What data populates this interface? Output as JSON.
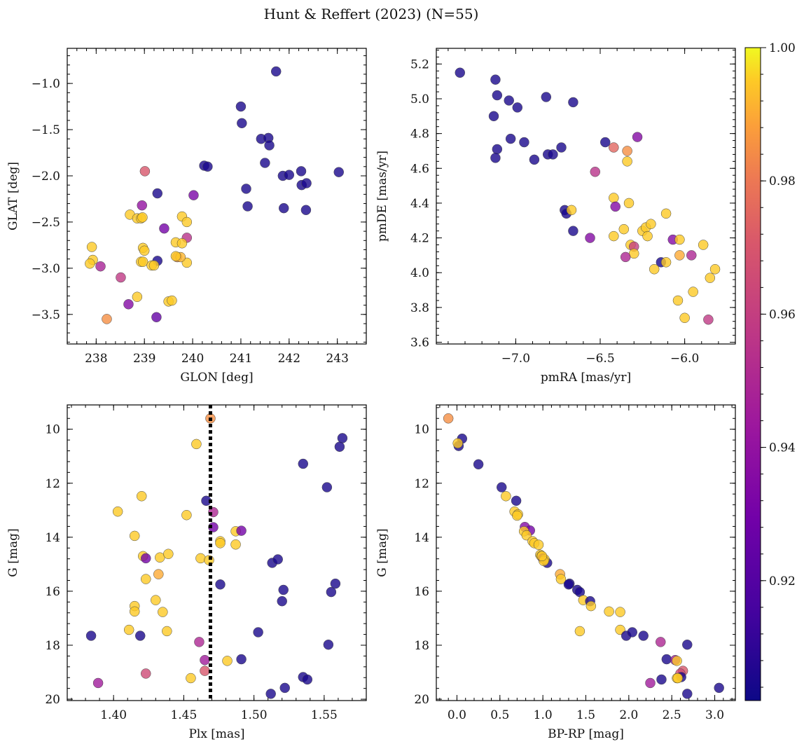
{
  "title": "Hunt & Reffert (2023) (N=55)",
  "colorbar": {
    "min": 0.902,
    "max": 1.0,
    "ticks": [
      0.92,
      0.94,
      0.96,
      0.98,
      1.0
    ],
    "tick_labels": [
      "0.92",
      "0.94",
      "0.96",
      "0.98",
      "1.00"
    ],
    "colormap": "plasma"
  },
  "chart_data": [
    {
      "type": "scatter",
      "xlabel": "GLON [deg]",
      "ylabel": "GLAT [deg]",
      "xlim": [
        237.4,
        243.6
      ],
      "ylim": [
        -3.82,
        -0.62
      ],
      "y_inverted": false,
      "xticks": [
        238,
        239,
        240,
        241,
        242,
        243
      ],
      "xtick_labels": [
        "238",
        "239",
        "240",
        "241",
        "242",
        "243"
      ],
      "yticks": [
        -3.5,
        -3.0,
        -2.5,
        -2.0,
        -1.5,
        -1.0
      ],
      "ytick_labels": [
        "−3.5",
        "−3.0",
        "−2.5",
        "−2.0",
        "−1.5",
        "−1.0"
      ],
      "points": [
        [
          241.73,
          -0.87,
          0.905
        ],
        [
          241.0,
          -1.25,
          0.905
        ],
        [
          241.02,
          -1.43,
          0.905
        ],
        [
          241.42,
          -1.6,
          0.905
        ],
        [
          241.57,
          -1.59,
          0.905
        ],
        [
          241.59,
          -1.67,
          0.905
        ],
        [
          241.5,
          -1.86,
          0.905
        ],
        [
          240.24,
          -1.89,
          0.905
        ],
        [
          240.31,
          -1.9,
          0.905
        ],
        [
          241.11,
          -2.14,
          0.905
        ],
        [
          241.14,
          -2.33,
          0.905
        ],
        [
          241.87,
          -2.0,
          0.905
        ],
        [
          242.0,
          -1.99,
          0.905
        ],
        [
          242.25,
          -1.95,
          0.905
        ],
        [
          242.26,
          -2.1,
          0.905
        ],
        [
          242.36,
          -2.08,
          0.905
        ],
        [
          243.03,
          -1.96,
          0.905
        ],
        [
          241.89,
          -2.35,
          0.905
        ],
        [
          242.35,
          -2.37,
          0.905
        ],
        [
          239.27,
          -2.19,
          0.905
        ],
        [
          239.27,
          -2.92,
          0.905
        ],
        [
          239.01,
          -1.95,
          0.97
        ],
        [
          240.02,
          -2.21,
          0.932
        ],
        [
          238.95,
          -2.32,
          0.94
        ],
        [
          239.41,
          -2.57,
          0.93
        ],
        [
          239.88,
          -2.67,
          0.955
        ],
        [
          238.09,
          -2.98,
          0.948
        ],
        [
          238.51,
          -3.1,
          0.958
        ],
        [
          238.67,
          -3.39,
          0.935
        ],
        [
          239.25,
          -3.53,
          0.925
        ],
        [
          238.7,
          -2.42,
          0.995
        ],
        [
          238.85,
          -2.46,
          0.995
        ],
        [
          238.93,
          -2.46,
          0.995
        ],
        [
          238.96,
          -2.45,
          0.995
        ],
        [
          238.97,
          -2.78,
          0.995
        ],
        [
          239.0,
          -2.81,
          0.995
        ],
        [
          238.93,
          -2.93,
          0.995
        ],
        [
          238.97,
          -2.93,
          0.995
        ],
        [
          239.15,
          -2.97,
          0.995
        ],
        [
          239.2,
          -2.97,
          0.995
        ],
        [
          239.65,
          -2.72,
          0.995
        ],
        [
          239.78,
          -2.44,
          0.995
        ],
        [
          239.78,
          -2.73,
          0.995
        ],
        [
          239.88,
          -2.5,
          0.995
        ],
        [
          239.88,
          -2.94,
          0.995
        ],
        [
          239.68,
          -2.88,
          0.985
        ],
        [
          239.75,
          -2.88,
          0.992
        ],
        [
          237.91,
          -2.77,
          0.995
        ],
        [
          237.93,
          -2.91,
          0.995
        ],
        [
          237.87,
          -2.95,
          0.995
        ],
        [
          238.22,
          -3.55,
          0.985
        ],
        [
          238.85,
          -3.31,
          0.995
        ],
        [
          239.5,
          -3.36,
          0.995
        ],
        [
          239.57,
          -3.35,
          0.995
        ],
        [
          239.65,
          -2.87,
          0.995
        ]
      ]
    },
    {
      "type": "scatter",
      "xlabel": "pmRA [mas/yr]",
      "ylabel": "pmDE [mas/yr]",
      "xlim": [
        -7.47,
        -5.7
      ],
      "ylim": [
        3.59,
        5.29
      ],
      "y_inverted": false,
      "xticks": [
        -7.0,
        -6.5,
        -6.0
      ],
      "xtick_labels": [
        "−7.0",
        "−6.5",
        "−6.0"
      ],
      "yticks": [
        3.6,
        3.8,
        4.0,
        4.2,
        4.4,
        4.6,
        4.8,
        5.0,
        5.2
      ],
      "ytick_labels": [
        "3.6",
        "3.8",
        "4.0",
        "4.2",
        "4.4",
        "4.6",
        "4.8",
        "5.0",
        "5.2"
      ],
      "points": [
        [
          -7.33,
          5.15,
          0.905
        ],
        [
          -7.12,
          5.11,
          0.905
        ],
        [
          -7.11,
          5.02,
          0.905
        ],
        [
          -7.04,
          4.99,
          0.905
        ],
        [
          -6.99,
          4.95,
          0.905
        ],
        [
          -7.13,
          4.9,
          0.905
        ],
        [
          -6.82,
          5.01,
          0.905
        ],
        [
          -6.66,
          4.98,
          0.905
        ],
        [
          -7.03,
          4.77,
          0.905
        ],
        [
          -6.95,
          4.75,
          0.905
        ],
        [
          -6.73,
          4.72,
          0.905
        ],
        [
          -7.11,
          4.71,
          0.905
        ],
        [
          -6.81,
          4.68,
          0.905
        ],
        [
          -6.78,
          4.68,
          0.905
        ],
        [
          -6.89,
          4.65,
          0.905
        ],
        [
          -7.12,
          4.66,
          0.905
        ],
        [
          -6.71,
          4.36,
          0.905
        ],
        [
          -6.7,
          4.34,
          0.905
        ],
        [
          -6.66,
          4.24,
          0.905
        ],
        [
          -6.47,
          4.75,
          0.905
        ],
        [
          -6.14,
          4.06,
          0.905
        ],
        [
          -6.42,
          4.72,
          0.975
        ],
        [
          -6.34,
          4.7,
          0.985
        ],
        [
          -6.28,
          4.78,
          0.935
        ],
        [
          -6.53,
          4.58,
          0.955
        ],
        [
          -6.34,
          4.64,
          0.995
        ],
        [
          -6.42,
          4.43,
          0.995
        ],
        [
          -6.41,
          4.38,
          0.935
        ],
        [
          -6.33,
          4.4,
          0.995
        ],
        [
          -6.11,
          4.34,
          0.995
        ],
        [
          -6.67,
          4.36,
          0.995
        ],
        [
          -6.36,
          4.25,
          0.995
        ],
        [
          -6.42,
          4.21,
          0.995
        ],
        [
          -6.56,
          4.2,
          0.935
        ],
        [
          -6.25,
          4.24,
          0.995
        ],
        [
          -6.23,
          4.26,
          0.995
        ],
        [
          -6.2,
          4.28,
          0.995
        ],
        [
          -6.22,
          4.21,
          0.995
        ],
        [
          -6.32,
          4.16,
          0.995
        ],
        [
          -6.3,
          4.15,
          0.96
        ],
        [
          -6.3,
          4.11,
          0.995
        ],
        [
          -6.35,
          4.09,
          0.95
        ],
        [
          -6.07,
          4.19,
          0.935
        ],
        [
          -6.03,
          4.19,
          0.995
        ],
        [
          -5.89,
          4.16,
          0.995
        ],
        [
          -6.18,
          4.02,
          0.995
        ],
        [
          -6.11,
          4.06,
          0.995
        ],
        [
          -6.03,
          4.1,
          0.99
        ],
        [
          -5.96,
          4.1,
          0.95
        ],
        [
          -5.82,
          4.02,
          0.995
        ],
        [
          -5.85,
          3.97,
          0.995
        ],
        [
          -5.95,
          3.89,
          0.995
        ],
        [
          -6.04,
          3.84,
          0.995
        ],
        [
          -6.0,
          3.74,
          0.995
        ],
        [
          -5.86,
          3.73,
          0.958
        ]
      ]
    },
    {
      "type": "scatter",
      "xlabel": "Plx [mas]",
      "ylabel": "G [mag]",
      "xlim": [
        1.367,
        1.58
      ],
      "ylim": [
        20.05,
        9.1
      ],
      "y_inverted": true,
      "vline": 1.469,
      "xticks": [
        1.4,
        1.45,
        1.5,
        1.55
      ],
      "xtick_labels": [
        "1.40",
        "1.45",
        "1.50",
        "1.55"
      ],
      "yticks": [
        10,
        12,
        14,
        16,
        18,
        20
      ],
      "ytick_labels": [
        "10",
        "12",
        "14",
        "16",
        "18",
        "20"
      ],
      "points": [
        [
          1.563,
          10.33,
          0.905
        ],
        [
          1.561,
          10.65,
          0.905
        ],
        [
          1.535,
          11.28,
          0.905
        ],
        [
          1.552,
          12.15,
          0.905
        ],
        [
          1.466,
          12.65,
          0.905
        ],
        [
          1.513,
          14.95,
          0.905
        ],
        [
          1.517,
          14.82,
          0.905
        ],
        [
          1.558,
          15.72,
          0.905
        ],
        [
          1.476,
          15.75,
          0.905
        ],
        [
          1.521,
          15.95,
          0.905
        ],
        [
          1.555,
          16.03,
          0.905
        ],
        [
          1.52,
          16.37,
          0.905
        ],
        [
          1.503,
          17.52,
          0.905
        ],
        [
          1.384,
          17.65,
          0.905
        ],
        [
          1.419,
          17.65,
          0.905
        ],
        [
          1.553,
          17.98,
          0.905
        ],
        [
          1.491,
          18.52,
          0.905
        ],
        [
          1.535,
          19.18,
          0.905
        ],
        [
          1.538,
          19.27,
          0.905
        ],
        [
          1.522,
          19.58,
          0.905
        ],
        [
          1.512,
          19.8,
          0.905
        ],
        [
          1.469,
          9.6,
          0.985
        ],
        [
          1.459,
          10.55,
          0.995
        ],
        [
          1.403,
          13.05,
          0.995
        ],
        [
          1.42,
          12.48,
          0.995
        ],
        [
          1.452,
          13.18,
          0.995
        ],
        [
          1.471,
          13.07,
          0.95
        ],
        [
          1.471,
          13.63,
          0.93
        ],
        [
          1.487,
          13.78,
          0.995
        ],
        [
          1.491,
          13.76,
          0.93
        ],
        [
          1.415,
          13.95,
          0.995
        ],
        [
          1.476,
          14.15,
          0.995
        ],
        [
          1.476,
          14.22,
          0.995
        ],
        [
          1.487,
          14.27,
          0.995
        ],
        [
          1.421,
          14.7,
          0.995
        ],
        [
          1.423,
          14.78,
          0.93
        ],
        [
          1.433,
          14.75,
          0.995
        ],
        [
          1.439,
          14.62,
          0.995
        ],
        [
          1.462,
          14.78,
          0.995
        ],
        [
          1.468,
          14.85,
          0.995
        ],
        [
          1.432,
          15.37,
          0.99
        ],
        [
          1.423,
          15.55,
          0.995
        ],
        [
          1.43,
          16.33,
          0.995
        ],
        [
          1.415,
          16.55,
          0.995
        ],
        [
          1.415,
          16.75,
          0.995
        ],
        [
          1.435,
          16.77,
          0.995
        ],
        [
          1.411,
          17.43,
          0.995
        ],
        [
          1.438,
          17.48,
          0.995
        ],
        [
          1.461,
          17.88,
          0.95
        ],
        [
          1.465,
          18.55,
          0.945
        ],
        [
          1.481,
          18.58,
          0.995
        ],
        [
          1.465,
          18.95,
          0.97
        ],
        [
          1.423,
          19.05,
          0.965
        ],
        [
          1.455,
          19.22,
          0.995
        ],
        [
          1.389,
          19.4,
          0.945
        ]
      ]
    },
    {
      "type": "scatter",
      "xlabel": "BP-RP [mag]",
      "ylabel": "G [mag]",
      "xlim": [
        -0.24,
        3.24
      ],
      "ylim": [
        20.05,
        9.1
      ],
      "y_inverted": true,
      "xticks": [
        0.0,
        0.5,
        1.0,
        1.5,
        2.0,
        2.5,
        3.0
      ],
      "xtick_labels": [
        "0.0",
        "0.5",
        "1.0",
        "1.5",
        "2.0",
        "2.5",
        "3.0"
      ],
      "yticks": [
        10,
        12,
        14,
        16,
        18,
        20
      ],
      "ytick_labels": [
        "10",
        "12",
        "14",
        "16",
        "18",
        "20"
      ],
      "points": [
        [
          -0.1,
          9.6,
          0.985
        ],
        [
          0.06,
          10.35,
          0.905
        ],
        [
          0.02,
          10.62,
          0.905
        ],
        [
          0.01,
          10.52,
          0.995
        ],
        [
          0.25,
          11.3,
          0.905
        ],
        [
          0.52,
          12.15,
          0.905
        ],
        [
          0.57,
          12.48,
          0.995
        ],
        [
          0.69,
          12.65,
          0.905
        ],
        [
          0.67,
          13.05,
          0.995
        ],
        [
          0.71,
          13.15,
          0.995
        ],
        [
          0.7,
          13.2,
          0.995
        ],
        [
          0.79,
          13.62,
          0.935
        ],
        [
          0.85,
          13.75,
          0.93
        ],
        [
          0.78,
          13.78,
          0.995
        ],
        [
          0.81,
          13.93,
          0.995
        ],
        [
          0.88,
          14.15,
          0.995
        ],
        [
          0.9,
          14.22,
          0.995
        ],
        [
          0.95,
          14.28,
          0.995
        ],
        [
          0.97,
          14.65,
          0.995
        ],
        [
          0.98,
          14.7,
          0.995
        ],
        [
          1.0,
          14.78,
          0.93
        ],
        [
          1.05,
          14.95,
          0.905
        ],
        [
          1.02,
          14.82,
          0.995
        ],
        [
          1.01,
          14.88,
          0.995
        ],
        [
          1.2,
          15.37,
          0.99
        ],
        [
          1.21,
          15.55,
          0.995
        ],
        [
          1.31,
          15.72,
          0.905
        ],
        [
          1.3,
          15.75,
          0.905
        ],
        [
          1.4,
          15.95,
          0.905
        ],
        [
          1.43,
          16.03,
          0.905
        ],
        [
          1.47,
          16.33,
          0.995
        ],
        [
          1.55,
          16.37,
          0.905
        ],
        [
          1.56,
          16.55,
          0.995
        ],
        [
          1.43,
          17.48,
          0.995
        ],
        [
          1.77,
          16.75,
          0.995
        ],
        [
          1.9,
          16.77,
          0.995
        ],
        [
          1.9,
          17.43,
          0.995
        ],
        [
          1.97,
          17.65,
          0.905
        ],
        [
          2.04,
          17.52,
          0.905
        ],
        [
          2.17,
          17.65,
          0.905
        ],
        [
          2.37,
          17.88,
          0.95
        ],
        [
          2.68,
          17.98,
          0.905
        ],
        [
          2.44,
          18.52,
          0.905
        ],
        [
          2.54,
          18.55,
          0.945
        ],
        [
          2.56,
          18.58,
          0.995
        ],
        [
          2.63,
          18.95,
          0.97
        ],
        [
          2.6,
          19.05,
          0.965
        ],
        [
          2.61,
          19.18,
          0.905
        ],
        [
          2.56,
          19.22,
          0.995
        ],
        [
          2.38,
          19.27,
          0.905
        ],
        [
          2.25,
          19.4,
          0.945
        ],
        [
          3.05,
          19.58,
          0.905
        ],
        [
          2.68,
          19.8,
          0.905
        ],
        [
          2.57,
          19.22,
          0.995
        ],
        [
          0.99,
          14.7,
          0.995
        ]
      ]
    }
  ]
}
